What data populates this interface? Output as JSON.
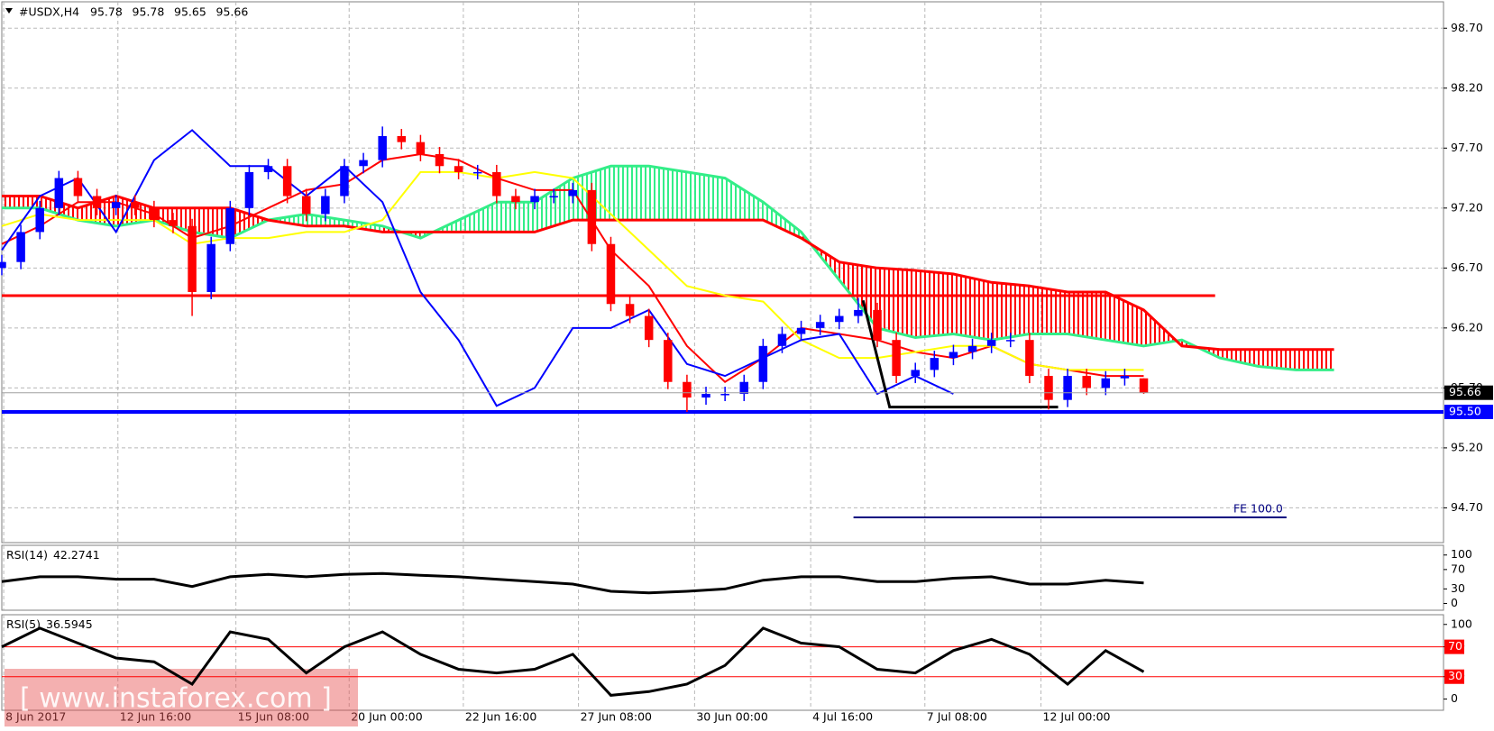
{
  "chart_data": [
    {
      "type": "candlestick",
      "title": "#USDX,H4",
      "ohlc": [
        95.78,
        95.78,
        95.65,
        95.66
      ],
      "ylim": [
        94.41,
        98.92
      ],
      "xlim": [
        0,
        75.75
      ],
      "grid": true,
      "yticks": [
        {
          "value": 98.7,
          "label": "98.70"
        },
        {
          "value": 98.2,
          "label": "98.20"
        },
        {
          "value": 97.7,
          "label": "97.70"
        },
        {
          "value": 97.2,
          "label": "97.20"
        },
        {
          "value": 96.7,
          "label": "96.70"
        },
        {
          "value": 96.2,
          "label": "96.20"
        },
        {
          "value": 95.7,
          "label": "95.70"
        },
        {
          "value": 95.2,
          "label": "95.20"
        },
        {
          "value": 94.7,
          "label": "94.70"
        }
      ],
      "up_color": "#0000ff",
      "down_color": "#ff0000",
      "candles": [
        [
          96.7,
          96.81,
          96.64,
          96.75
        ],
        [
          96.75,
          97.06,
          96.69,
          97.0
        ],
        [
          97.0,
          97.26,
          96.94,
          97.2
        ],
        [
          97.2,
          97.51,
          97.14,
          97.45
        ],
        [
          97.45,
          97.51,
          97.24,
          97.3
        ],
        [
          97.3,
          97.36,
          97.14,
          97.2
        ],
        [
          97.2,
          97.31,
          97.14,
          97.25
        ],
        [
          97.25,
          97.31,
          97.14,
          97.2
        ],
        [
          97.2,
          97.26,
          97.04,
          97.1
        ],
        [
          97.1,
          97.16,
          96.99,
          97.05
        ],
        [
          97.05,
          97.11,
          96.3,
          96.5
        ],
        [
          96.5,
          96.96,
          96.44,
          96.9
        ],
        [
          96.9,
          97.26,
          96.84,
          97.2
        ],
        [
          97.2,
          97.56,
          97.14,
          97.5
        ],
        [
          97.5,
          97.61,
          97.44,
          97.55
        ],
        [
          97.55,
          97.61,
          97.24,
          97.3
        ],
        [
          97.3,
          97.36,
          97.09,
          97.15
        ],
        [
          97.15,
          97.36,
          97.09,
          97.3
        ],
        [
          97.3,
          97.61,
          97.24,
          97.55
        ],
        [
          97.55,
          97.66,
          97.49,
          97.6
        ],
        [
          97.6,
          97.88,
          97.54,
          97.8
        ],
        [
          97.8,
          97.86,
          97.69,
          97.75
        ],
        [
          97.75,
          97.81,
          97.59,
          97.65
        ],
        [
          97.65,
          97.71,
          97.49,
          97.55
        ],
        [
          97.55,
          97.61,
          97.44,
          97.5
        ],
        [
          97.5,
          97.56,
          97.44,
          97.5
        ],
        [
          97.5,
          97.56,
          97.24,
          97.3
        ],
        [
          97.3,
          97.36,
          97.19,
          97.25
        ],
        [
          97.25,
          97.36,
          97.19,
          97.3
        ],
        [
          97.3,
          97.36,
          97.24,
          97.3
        ],
        [
          97.3,
          97.41,
          97.24,
          97.35
        ],
        [
          97.35,
          97.41,
          96.84,
          96.9
        ],
        [
          96.9,
          96.96,
          96.34,
          96.4
        ],
        [
          96.4,
          96.46,
          96.24,
          96.3
        ],
        [
          96.3,
          96.36,
          96.04,
          96.1
        ],
        [
          96.1,
          96.16,
          95.69,
          95.75
        ],
        [
          95.75,
          95.81,
          95.5,
          95.62
        ],
        [
          95.62,
          95.71,
          95.56,
          95.65
        ],
        [
          95.65,
          95.71,
          95.59,
          95.65
        ],
        [
          95.65,
          95.81,
          95.59,
          95.75
        ],
        [
          95.75,
          96.11,
          95.69,
          96.05
        ],
        [
          96.05,
          96.21,
          95.99,
          96.15
        ],
        [
          96.15,
          96.26,
          96.09,
          96.2
        ],
        [
          96.2,
          96.31,
          96.14,
          96.25
        ],
        [
          96.25,
          96.36,
          96.19,
          96.3
        ],
        [
          96.3,
          96.45,
          96.24,
          96.35
        ],
        [
          96.35,
          96.41,
          96.04,
          96.1
        ],
        [
          96.1,
          96.16,
          95.74,
          95.8
        ],
        [
          95.8,
          95.91,
          95.74,
          95.85
        ],
        [
          95.85,
          96.01,
          95.79,
          95.95
        ],
        [
          95.95,
          96.06,
          95.89,
          96.0
        ],
        [
          96.0,
          96.11,
          95.94,
          96.05
        ],
        [
          96.05,
          96.16,
          95.99,
          96.1
        ],
        [
          96.1,
          96.16,
          96.04,
          96.1
        ],
        [
          96.1,
          96.16,
          95.74,
          95.8
        ],
        [
          95.8,
          95.86,
          95.52,
          95.6
        ],
        [
          95.6,
          95.86,
          95.54,
          95.8
        ],
        [
          95.8,
          95.86,
          95.64,
          95.7
        ],
        [
          95.7,
          95.84,
          95.64,
          95.78
        ],
        [
          95.78,
          95.86,
          95.72,
          95.8
        ],
        [
          95.78,
          95.78,
          95.65,
          95.66
        ]
      ],
      "x": [
        0,
        2,
        4,
        6,
        8,
        10,
        12,
        14,
        16,
        18,
        20,
        22,
        24,
        26,
        28,
        30,
        32,
        34,
        36,
        38,
        40,
        42,
        44,
        46,
        48,
        50,
        52,
        54,
        56,
        58,
        60,
        62,
        64,
        66,
        68,
        70
      ],
      "series": [
        {
          "color": "#ff0000",
          "values": [
            96.9,
            97.05,
            97.25,
            97.25,
            97.15,
            96.95,
            97.05,
            97.2,
            97.35,
            97.4,
            97.6,
            97.65,
            97.6,
            97.45,
            97.35,
            97.35,
            96.85,
            96.55,
            96.05,
            95.75,
            95.95,
            96.2,
            96.15,
            96.1,
            96.0,
            95.95,
            96.05,
            95.9,
            95.85,
            95.8,
            95.8,
            null,
            null,
            null,
            null,
            null
          ]
        },
        {
          "color": "#ffff00",
          "values": [
            97.05,
            97.15,
            97.1,
            97.1,
            97.1,
            96.9,
            96.95,
            96.95,
            97.0,
            97.0,
            97.1,
            97.5,
            97.5,
            97.45,
            97.5,
            97.45,
            97.15,
            96.85,
            96.55,
            96.47,
            96.42,
            96.1,
            95.95,
            95.95,
            96.0,
            96.05,
            96.05,
            95.9,
            95.85,
            95.85,
            95.85,
            null,
            null,
            null,
            null,
            null
          ]
        },
        {
          "color": "#0000ff",
          "values": [
            96.85,
            97.3,
            97.45,
            97.0,
            97.6,
            97.85,
            97.55,
            97.55,
            97.3,
            97.55,
            97.25,
            96.5,
            96.1,
            95.55,
            95.7,
            96.2,
            96.2,
            96.35,
            95.9,
            95.8,
            95.95,
            96.1,
            96.15,
            95.65,
            95.8,
            95.65,
            null,
            null,
            null,
            null,
            null,
            null,
            null,
            null,
            null,
            null
          ]
        }
      ],
      "cloud": {
        "span_a": {
          "color": "#33ee88",
          "values": [
            97.2,
            97.2,
            97.1,
            97.05,
            97.1,
            97.0,
            96.95,
            97.1,
            97.15,
            97.1,
            97.05,
            96.95,
            97.1,
            97.25,
            97.25,
            97.45,
            97.55,
            97.55,
            97.5,
            97.45,
            97.25,
            97.0,
            96.6,
            96.2,
            96.12,
            96.15,
            96.1,
            96.15,
            96.15,
            96.1,
            96.05,
            96.1,
            95.95,
            95.88,
            95.85,
            95.85
          ]
        },
        "span_b": {
          "color": "#ff0000",
          "values": [
            97.3,
            97.3,
            97.2,
            97.3,
            97.2,
            97.2,
            97.2,
            97.1,
            97.05,
            97.05,
            97.0,
            97.0,
            97.0,
            97.0,
            97.0,
            97.1,
            97.1,
            97.1,
            97.1,
            97.1,
            97.1,
            96.95,
            96.75,
            96.7,
            96.68,
            96.65,
            96.58,
            96.55,
            96.5,
            96.5,
            96.35,
            96.05,
            96.02,
            96.02,
            96.02,
            96.02
          ]
        }
      },
      "resistance": {
        "value": 96.47,
        "x": [
          0,
          63.75
        ],
        "color": "#ff0000"
      },
      "support": {
        "value": 95.5,
        "label": "95.50",
        "color": "#0000ff"
      },
      "last_price": 95.66,
      "trend_line": {
        "x": [
          45.25,
          46.65,
          55.5
        ],
        "y": [
          96.43,
          95.54,
          95.54
        ],
        "color": "#000000"
      },
      "fe_level": {
        "value": 94.62,
        "x": [
          44.75,
          67.5
        ],
        "label": "FE 100.0",
        "color": "#000080"
      },
      "watermark": "[ www.instaforex.com ]"
    },
    {
      "type": "line",
      "title": "RSI(14)",
      "last_value": 42.2741,
      "ylim": [
        -14,
        120
      ],
      "yticks": [
        100,
        70,
        30,
        0
      ],
      "x": [
        0,
        2,
        4,
        6,
        8,
        10,
        12,
        14,
        16,
        18,
        20,
        22,
        24,
        26,
        28,
        30,
        32,
        34,
        36,
        38,
        40,
        42,
        44,
        46,
        48,
        50,
        52,
        54,
        56,
        58,
        60
      ],
      "series": [
        {
          "color": "#000000",
          "values": [
            45,
            55,
            55,
            50,
            50,
            35,
            55,
            60,
            55,
            60,
            62,
            58,
            55,
            50,
            45,
            40,
            25,
            22,
            25,
            30,
            48,
            55,
            55,
            45,
            45,
            52,
            55,
            40,
            40,
            48,
            42.27
          ]
        }
      ]
    },
    {
      "type": "line",
      "title": "RSI(5)",
      "last_value": 36.5945,
      "ylim": [
        -15,
        113
      ],
      "yticks": [
        100,
        70,
        30,
        0
      ],
      "levels": [
        70,
        30
      ],
      "level_color": "#ff0000",
      "x": [
        0,
        2,
        4,
        6,
        8,
        10,
        12,
        14,
        16,
        18,
        20,
        22,
        24,
        26,
        28,
        30,
        32,
        34,
        36,
        38,
        40,
        42,
        44,
        46,
        48,
        50,
        52,
        54,
        56,
        58,
        60
      ],
      "series": [
        {
          "color": "#000000",
          "values": [
            70,
            95,
            75,
            55,
            50,
            20,
            90,
            80,
            35,
            70,
            90,
            60,
            40,
            35,
            40,
            60,
            5,
            10,
            20,
            45,
            95,
            75,
            70,
            40,
            35,
            65,
            80,
            60,
            20,
            65,
            36.59
          ]
        }
      ],
      "xticks": [
        {
          "value": 0.1,
          "label": "8 Jun 2017"
        },
        {
          "value": 6.1,
          "label": "12 Jun 16:00"
        },
        {
          "value": 12.3,
          "label": "15 Jun 08:00"
        },
        {
          "value": 18.25,
          "label": "20 Jun 00:00"
        },
        {
          "value": 24.25,
          "label": "22 Jun 16:00"
        },
        {
          "value": 30.3,
          "label": "27 Jun 08:00"
        },
        {
          "value": 36.4,
          "label": "30 Jun 00:00"
        },
        {
          "value": 42.5,
          "label": "4 Jul 16:00"
        },
        {
          "value": 48.5,
          "label": "7 Jul 08:00"
        },
        {
          "value": 54.6,
          "label": "12 Jul 00:00"
        }
      ]
    }
  ]
}
